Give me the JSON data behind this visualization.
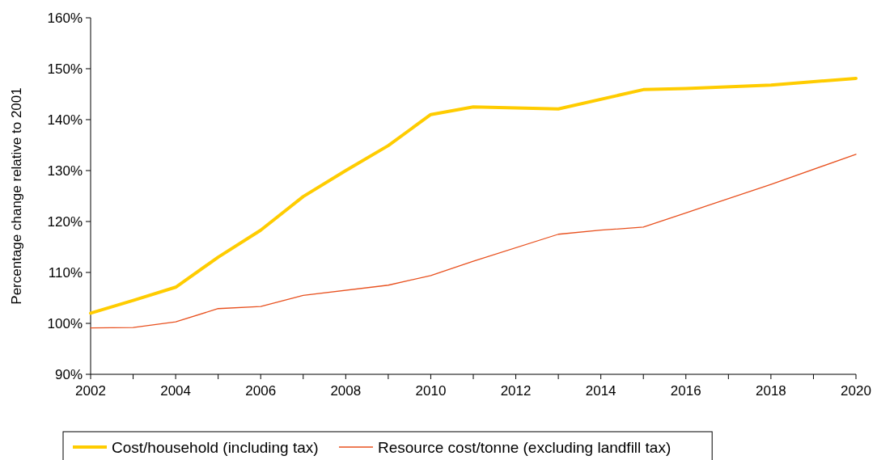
{
  "chart_data": {
    "type": "line",
    "ylabel": "Percentage change relative to 2001",
    "xlim": [
      2002,
      2020
    ],
    "xticks": [
      2002,
      {
        "value": 2003,
        "label": null
      },
      2004,
      {
        "value": 2005,
        "label": null
      },
      2006,
      {
        "value": 2007,
        "label": null
      },
      2008,
      {
        "value": 2009,
        "label": null
      },
      2010,
      {
        "value": 2011,
        "label": null
      },
      2012,
      {
        "value": 2013,
        "label": null
      },
      2014,
      {
        "value": 2015,
        "label": null
      },
      2016,
      {
        "value": 2017,
        "label": null
      },
      2018,
      {
        "value": 2019,
        "label": null
      },
      2020
    ],
    "ylim": [
      90,
      160
    ],
    "yticks": [
      {
        "value": 90,
        "label": "90%"
      },
      {
        "value": 100,
        "label": "100%"
      },
      {
        "value": 110,
        "label": "110%"
      },
      {
        "value": 120,
        "label": "120%"
      },
      {
        "value": 130,
        "label": "130%"
      },
      {
        "value": 140,
        "label": "140%"
      },
      {
        "value": 150,
        "label": "150%"
      },
      {
        "value": 160,
        "label": "160%"
      }
    ],
    "grid": false,
    "legend": "bottom",
    "marker": "none",
    "line_style": "solid",
    "series": [
      {
        "name": "Cost/household (including tax)",
        "color": "#ffcc00",
        "x": [
          2002,
          2003,
          2004,
          2005,
          2006,
          2007,
          2008,
          2009,
          2010,
          2011,
          2013,
          2015,
          2016,
          2018,
          2020
        ],
        "values": [
          102,
          104.5,
          107.1,
          113,
          118.3,
          124.9,
          130,
          134.9,
          141,
          142.5,
          142.1,
          145.9,
          146.1,
          146.8,
          148.1
        ]
      },
      {
        "name": "Resource cost/tonne (excluding landfill tax)",
        "color": "#e8501e",
        "x": [
          2002,
          2003,
          2004,
          2005,
          2006,
          2007,
          2009,
          2010,
          2011,
          2013,
          2014,
          2015,
          2016,
          2018,
          2020
        ],
        "values": [
          99.1,
          99.2,
          100.3,
          102.9,
          103.3,
          105.5,
          107.5,
          109.4,
          112.2,
          117.5,
          118.3,
          118.9,
          121.7,
          127.3,
          133.2
        ]
      }
    ]
  }
}
